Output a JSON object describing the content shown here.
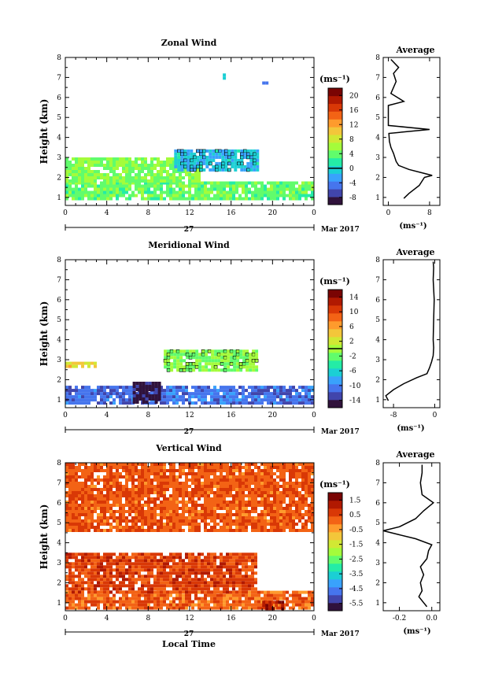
{
  "colors": {
    "scale": [
      "#30123b",
      "#4145ab",
      "#4675ed",
      "#39a2fc",
      "#1bcfd4",
      "#24eca6",
      "#61fc6c",
      "#a4fc3b",
      "#d1e834",
      "#f3c63a",
      "#fe9b2d",
      "#f36315",
      "#d93806",
      "#b11901",
      "#7a0403"
    ]
  },
  "panels": [
    {
      "title": "Zonal Wind",
      "unit": "(ms⁻¹)",
      "cbar_ticks": [
        "20",
        "16",
        "12",
        "8",
        "4",
        "0",
        "-4",
        "-8"
      ],
      "cbar_range": [
        -10,
        22
      ],
      "cbar_zero": 0,
      "profile_title": "Average",
      "profile_ticks": [
        "0",
        "8"
      ],
      "profile_unit": "(ms⁻¹)"
    },
    {
      "title": "Meridional Wind",
      "unit": "(ms⁻¹)",
      "cbar_ticks": [
        "14",
        "10",
        "6",
        "2",
        "-2",
        "-6",
        "-10",
        "-14"
      ],
      "cbar_range": [
        -16,
        16
      ],
      "cbar_zero": 0,
      "profile_title": "Average",
      "profile_ticks": [
        "-8",
        "0"
      ],
      "profile_unit": "(ms⁻¹)"
    },
    {
      "title": "Vertical Wind",
      "unit": "(ms⁻¹)",
      "cbar_ticks": [
        "1.5",
        "0.5",
        "-0.5",
        "-1.5",
        "-2.5",
        "-3.5",
        "-4.5",
        "-5.5"
      ],
      "cbar_range": [
        -6,
        2
      ],
      "cbar_zero": null,
      "profile_title": "Average",
      "profile_ticks": [
        "-0.2",
        "0.0"
      ],
      "profile_unit": "(ms⁻¹)"
    }
  ],
  "axes": {
    "ylabel": "Height (km)",
    "xlabel": "Local Time",
    "yticks": [
      "1",
      "2",
      "3",
      "4",
      "5",
      "6",
      "7",
      "8"
    ],
    "xticks": [
      "0",
      "4",
      "8",
      "12",
      "16",
      "20",
      "0"
    ],
    "date_day": "27",
    "date_month": "Mar 2017"
  },
  "chart_data": [
    {
      "type": "heatmap",
      "title": "Zonal Wind",
      "xlabel": "",
      "ylabel": "Height (km)",
      "xlim": [
        0,
        24
      ],
      "ylim": [
        0.6,
        8
      ],
      "colorbar_range": [
        -10,
        22
      ],
      "colorbar_label": "(ms⁻¹)",
      "colorbar_ticks": [
        20,
        16,
        12,
        8,
        4,
        0,
        -4,
        -8
      ],
      "regions": [
        {
          "x": [
            0,
            24
          ],
          "y": [
            0.9,
            1.8
          ],
          "value": 4
        },
        {
          "x": [
            0,
            13
          ],
          "y": [
            1.8,
            3.0
          ],
          "value": 5
        },
        {
          "x": [
            10.5,
            18.5
          ],
          "y": [
            2.3,
            3.4
          ],
          "value": -1
        },
        {
          "x": [
            15.2,
            15.5
          ],
          "y": [
            7.0,
            7.2
          ],
          "value": 0
        },
        {
          "x": [
            19,
            19.5
          ],
          "y": [
            6.7,
            6.8
          ],
          "value": -3
        }
      ],
      "profile": {
        "title": "Average",
        "xlabel": "(ms⁻¹)",
        "xticks": [
          0,
          8
        ],
        "xlim": [
          -1,
          10
        ],
        "height": [
          0.95,
          1.2,
          1.6,
          2.0,
          2.1,
          2.2,
          2.4,
          2.6,
          2.8,
          3.2,
          3.5,
          3.8,
          4.2,
          4.4,
          4.6,
          5.6,
          5.8,
          6.2,
          6.8,
          7.2,
          7.5,
          7.9
        ],
        "value": [
          3,
          4,
          6,
          7,
          8.5,
          7,
          4,
          2,
          1.5,
          1,
          0.5,
          0.2,
          0.1,
          8,
          0,
          0,
          3,
          0.5,
          1.5,
          1,
          2,
          0.5
        ]
      }
    },
    {
      "type": "heatmap",
      "title": "Meridional Wind",
      "xlabel": "",
      "ylabel": "Height (km)",
      "xlim": [
        0,
        24
      ],
      "ylim": [
        0.6,
        8
      ],
      "colorbar_range": [
        -16,
        16
      ],
      "colorbar_label": "(ms⁻¹)",
      "colorbar_ticks": [
        14,
        10,
        6,
        2,
        -2,
        -6,
        -10,
        -14
      ],
      "regions": [
        {
          "x": [
            0,
            24
          ],
          "y": [
            0.9,
            1.7
          ],
          "value": -11
        },
        {
          "x": [
            6.5,
            9.0
          ],
          "y": [
            0.9,
            1.9
          ],
          "value": -15
        },
        {
          "x": [
            9.5,
            18.5
          ],
          "y": [
            2.4,
            3.5
          ],
          "value": -1
        },
        {
          "x": [
            0,
            3
          ],
          "y": [
            2.6,
            2.9
          ],
          "value": 4
        }
      ],
      "profile": {
        "title": "Average",
        "xlabel": "(ms⁻¹)",
        "xticks": [
          -8,
          0
        ],
        "xlim": [
          -10,
          1
        ],
        "height": [
          0.95,
          1.2,
          1.5,
          1.8,
          2.1,
          2.3,
          2.6,
          2.9,
          3.2,
          3.6,
          4.0,
          5.0,
          6.0,
          7.0,
          7.6,
          7.9
        ],
        "value": [
          -9,
          -9.5,
          -8,
          -6,
          -3.5,
          -1.5,
          -1,
          -0.6,
          -0.3,
          -0.2,
          -0.3,
          -0.2,
          -0.1,
          -0.3,
          -0.2,
          -0.3
        ]
      }
    },
    {
      "type": "heatmap",
      "title": "Vertical Wind",
      "xlabel": "Local Time",
      "ylabel": "Height (km)",
      "xlim": [
        0,
        24
      ],
      "ylim": [
        0.6,
        8
      ],
      "colorbar_range": [
        -6,
        2
      ],
      "colorbar_label": "(ms⁻¹)",
      "colorbar_ticks": [
        1.5,
        0.5,
        -0.5,
        -1.5,
        -2.5,
        -3.5,
        -4.5,
        -5.5
      ],
      "regions": [
        {
          "x": [
            0,
            24
          ],
          "y": [
            0.7,
            1.6
          ],
          "value": 0.2
        },
        {
          "x": [
            0,
            18.5
          ],
          "y": [
            1.6,
            3.5
          ],
          "value": 0.6
        },
        {
          "x": [
            0,
            24
          ],
          "y": [
            4.6,
            8.0
          ],
          "value": 0.3
        },
        {
          "x": [
            19,
            21
          ],
          "y": [
            0.7,
            1.1
          ],
          "value": 1.2
        }
      ],
      "profile": {
        "title": "Average",
        "xlabel": "(ms⁻¹)",
        "xticks": [
          -0.2,
          0.0
        ],
        "xlim": [
          -0.3,
          0.05
        ],
        "height": [
          0.8,
          1.0,
          1.3,
          1.6,
          2.0,
          2.4,
          2.8,
          3.2,
          3.6,
          3.9,
          4.2,
          4.4,
          4.6,
          4.8,
          5.2,
          5.6,
          6.0,
          6.4,
          7.0,
          7.5,
          7.9
        ],
        "value": [
          -0.03,
          -0.05,
          -0.08,
          -0.06,
          -0.07,
          -0.05,
          -0.07,
          -0.03,
          -0.02,
          0.0,
          -0.1,
          -0.2,
          -0.3,
          -0.2,
          -0.1,
          -0.05,
          0.01,
          -0.06,
          -0.07,
          -0.06,
          -0.06
        ]
      }
    }
  ]
}
